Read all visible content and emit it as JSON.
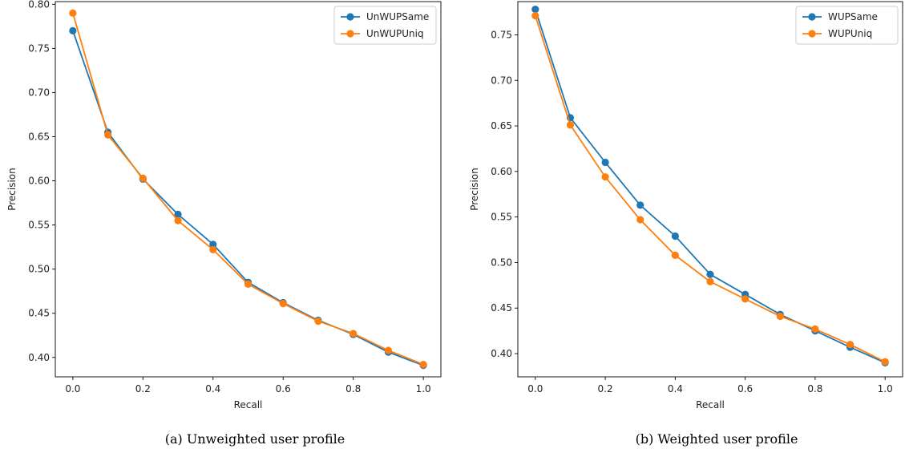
{
  "captions": [
    "(a) Unweighted user profile",
    "(b) Weighted user profile"
  ],
  "colors": {
    "series1": "#1f77b4",
    "series2": "#ff7f0e"
  },
  "chart_data": [
    {
      "type": "line",
      "xlabel": "Recall",
      "ylabel": "Precision",
      "xlim": [
        -0.05,
        1.05
      ],
      "ylim": [
        0.378,
        0.803
      ],
      "xticks": [
        0.0,
        0.2,
        0.4,
        0.6,
        0.8,
        1.0
      ],
      "xtick_labels": [
        "0.0",
        "0.2",
        "0.4",
        "0.6",
        "0.8",
        "1.0"
      ],
      "yticks": [
        0.4,
        0.45,
        0.5,
        0.55,
        0.6,
        0.65,
        0.7,
        0.75,
        0.8
      ],
      "ytick_labels": [
        "0.40",
        "0.45",
        "0.50",
        "0.55",
        "0.60",
        "0.65",
        "0.70",
        "0.75",
        "0.80"
      ],
      "grid": false,
      "legend": "top-right",
      "x": [
        0.0,
        0.1,
        0.2,
        0.3,
        0.4,
        0.5,
        0.6,
        0.7,
        0.8,
        0.9,
        1.0
      ],
      "series": [
        {
          "name": "UnWUPSame",
          "values": [
            0.77,
            0.655,
            0.602,
            0.562,
            0.528,
            0.485,
            0.462,
            0.442,
            0.426,
            0.406,
            0.391
          ]
        },
        {
          "name": "UnWUPUniq",
          "values": [
            0.79,
            0.652,
            0.603,
            0.555,
            0.522,
            0.483,
            0.461,
            0.441,
            0.427,
            0.408,
            0.392
          ]
        }
      ]
    },
    {
      "type": "line",
      "xlabel": "Recall",
      "ylabel": "Precision",
      "xlim": [
        -0.05,
        1.05
      ],
      "ylim": [
        0.3745,
        0.7865
      ],
      "xticks": [
        0.0,
        0.2,
        0.4,
        0.6,
        0.8,
        1.0
      ],
      "xtick_labels": [
        "0.0",
        "0.2",
        "0.4",
        "0.6",
        "0.8",
        "1.0"
      ],
      "yticks": [
        0.4,
        0.45,
        0.5,
        0.55,
        0.6,
        0.65,
        0.7,
        0.75
      ],
      "ytick_labels": [
        "0.40",
        "0.45",
        "0.50",
        "0.55",
        "0.60",
        "0.65",
        "0.70",
        "0.75"
      ],
      "grid": false,
      "legend": "top-right",
      "x": [
        0.0,
        0.1,
        0.2,
        0.3,
        0.4,
        0.5,
        0.6,
        0.7,
        0.8,
        0.9,
        1.0
      ],
      "series": [
        {
          "name": "WUPSame",
          "values": [
            0.778,
            0.659,
            0.61,
            0.563,
            0.529,
            0.487,
            0.465,
            0.443,
            0.425,
            0.407,
            0.39
          ]
        },
        {
          "name": "WUPUniq",
          "values": [
            0.771,
            0.651,
            0.594,
            0.547,
            0.508,
            0.479,
            0.46,
            0.441,
            0.427,
            0.41,
            0.391
          ]
        }
      ]
    }
  ]
}
